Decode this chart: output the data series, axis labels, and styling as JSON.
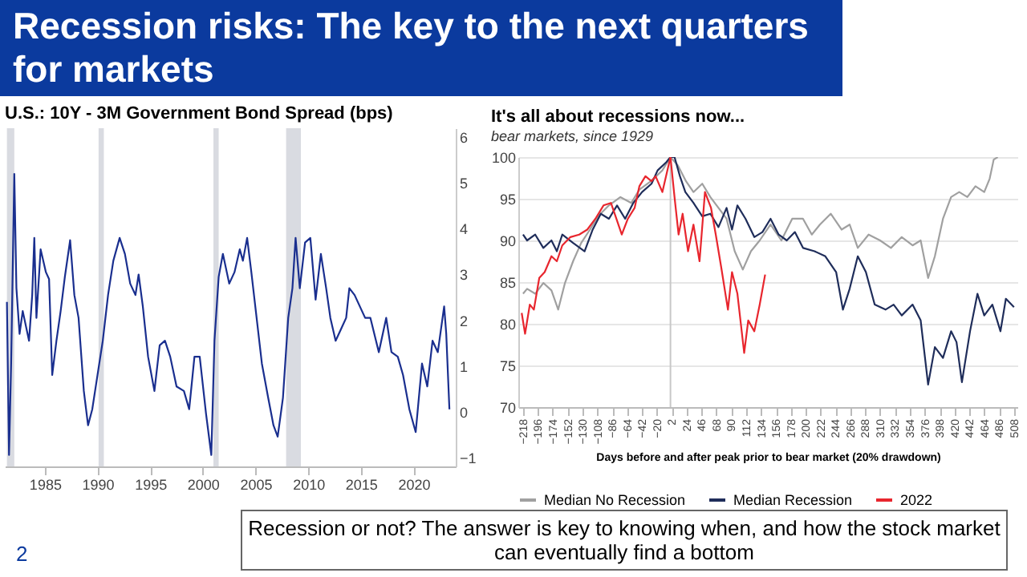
{
  "chart_data": [
    {
      "type": "line",
      "title": "U.S.: 10Y - 3M Government Bond Spread (bps)",
      "x": [
        1981.4,
        1981.6,
        1981.8,
        1982.1,
        1982.3,
        1982.6,
        1982.9,
        1983.5,
        1983.8,
        1984.0,
        1984.2,
        1984.6,
        1985.1,
        1985.4,
        1985.7,
        1986.1,
        1986.5,
        1986.9,
        1987.4,
        1987.8,
        1988.2,
        1988.7,
        1989.1,
        1989.5,
        1990.0,
        1990.5,
        1991.0,
        1991.5,
        1992.1,
        1992.6,
        1993.1,
        1993.6,
        1993.9,
        1994.3,
        1994.8,
        1995.4,
        1995.9,
        1996.4,
        1996.9,
        1997.5,
        1998.2,
        1998.7,
        1999.2,
        1999.7,
        2000.3,
        2000.8,
        2001.1,
        2001.5,
        2001.9,
        2002.5,
        2003.0,
        2003.5,
        2003.8,
        2004.2,
        2004.6,
        2005.1,
        2005.6,
        2006.2,
        2006.7,
        2007.1,
        2007.6,
        2008.1,
        2008.5,
        2008.8,
        2009.2,
        2009.7,
        2010.2,
        2010.7,
        2011.2,
        2011.7,
        2012.1,
        2012.6,
        2013.1,
        2013.6,
        2013.9,
        2014.4,
        2014.9,
        2015.4,
        2015.9,
        2016.7,
        2017.4,
        2017.9,
        2018.5,
        2019.0,
        2019.6,
        2020.2,
        2020.8,
        2021.3,
        2021.8,
        2022.3,
        2022.9,
        2023.1,
        2023.4
      ],
      "series": [
        {
          "color": "#1a2f8f",
          "values": [
            2.4,
            -0.95,
            1.05,
            5.2,
            2.7,
            1.7,
            2.2,
            1.55,
            2.55,
            3.8,
            2.05,
            3.55,
            3.05,
            2.9,
            0.8,
            1.55,
            2.2,
            2.95,
            3.75,
            2.55,
            2.05,
            0.45,
            -0.3,
            0.05,
            0.8,
            1.55,
            2.55,
            3.3,
            3.8,
            3.45,
            2.8,
            2.55,
            3.0,
            2.3,
            1.2,
            0.45,
            1.45,
            1.55,
            1.2,
            0.55,
            0.45,
            0.05,
            1.2,
            1.2,
            -0.05,
            -0.95,
            1.55,
            2.95,
            3.45,
            2.8,
            3.05,
            3.55,
            3.3,
            3.8,
            3.05,
            2.05,
            1.05,
            0.3,
            -0.3,
            -0.55,
            0.3,
            2.05,
            2.7,
            3.8,
            2.7,
            3.7,
            3.8,
            2.45,
            3.45,
            2.7,
            2.05,
            1.55,
            1.8,
            2.05,
            2.7,
            2.55,
            2.3,
            2.05,
            2.05,
            1.3,
            2.05,
            1.3,
            1.2,
            0.8,
            0.05,
            -0.45,
            1.05,
            0.55,
            1.55,
            1.3,
            2.3,
            1.7,
            0.05
          ]
        }
      ],
      "xlim": [
        1981.2,
        2024
      ],
      "xticks": [
        1985,
        1990,
        1995,
        2000,
        2005,
        2010,
        2015,
        2020
      ],
      "ylim": [
        -1.2,
        6.2
      ],
      "yticks": [
        -1,
        0,
        1,
        2,
        3,
        4,
        5,
        6
      ],
      "bands": [
        {
          "axis": "x",
          "from": 1981.4,
          "to": 1982.1,
          "color": "#d9dbe1"
        },
        {
          "axis": "x",
          "from": 1990.1,
          "to": 1990.6,
          "color": "#d9dbe1"
        },
        {
          "axis": "x",
          "from": 2001.0,
          "to": 2001.5,
          "color": "#d9dbe1"
        },
        {
          "axis": "x",
          "from": 2007.9,
          "to": 2009.3,
          "color": "#d9dbe1"
        }
      ]
    },
    {
      "type": "line",
      "title": "It's all about recessions now...",
      "subtitle": "bear markets, since 1929",
      "xlabel": "Days before and after peak prior to bear market (20% drawdown)",
      "xlim": [
        -225,
        513
      ],
      "xticks": [
        -218,
        -196,
        -174,
        -152,
        -130,
        -108,
        -86,
        -64,
        -42,
        -20,
        2,
        24,
        46,
        68,
        90,
        112,
        134,
        156,
        178,
        200,
        222,
        244,
        266,
        288,
        310,
        332,
        354,
        376,
        398,
        420,
        442,
        464,
        486,
        508
      ],
      "ylim": [
        70,
        100
      ],
      "yticks": [
        70,
        75,
        80,
        85,
        90,
        95,
        100
      ],
      "grid": "y",
      "legend": "bottom",
      "ref_lines": [
        {
          "axis": "x",
          "value": 0,
          "color": "#c8c8c8"
        }
      ],
      "series": [
        {
          "name": "Median No Recession",
          "color": "#a0a0a0",
          "x": [
            -218,
            -212,
            -200,
            -188,
            -176,
            -166,
            -156,
            -144,
            -132,
            -119,
            -107,
            -91,
            -74,
            -58,
            -46,
            -29,
            -12,
            0,
            11,
            23,
            34,
            47,
            59,
            71,
            83,
            95,
            107,
            119,
            132,
            148,
            164,
            180,
            196,
            209,
            221,
            237,
            253,
            265,
            277,
            293,
            310,
            326,
            342,
            358,
            370,
            381,
            391,
            403,
            415,
            427,
            439,
            451,
            464,
            472,
            478,
            484
          ],
          "values": [
            83.6,
            84.2,
            83.6,
            84.9,
            84.0,
            81.7,
            84.9,
            87.5,
            89.7,
            91.3,
            92.9,
            94.2,
            95.2,
            94.5,
            96.1,
            97.1,
            98.4,
            100,
            99.0,
            97.1,
            95.8,
            96.8,
            95.2,
            93.9,
            92.6,
            88.7,
            86.5,
            88.7,
            90.0,
            91.9,
            90.0,
            92.6,
            92.6,
            90.7,
            91.9,
            93.2,
            91.3,
            91.9,
            89.1,
            90.7,
            90.0,
            89.1,
            90.4,
            89.4,
            90.0,
            85.5,
            88.1,
            92.6,
            95.2,
            95.8,
            95.2,
            96.5,
            95.8,
            97.4,
            99.7,
            100
          ]
        },
        {
          "name": "Median Recession",
          "color": "#1f2d5a",
          "x": [
            -218,
            -212,
            -200,
            -188,
            -176,
            -168,
            -160,
            -144,
            -127,
            -115,
            -103,
            -91,
            -79,
            -67,
            -55,
            -42,
            -28,
            -19,
            -6,
            0,
            6,
            14,
            22,
            34,
            47,
            59,
            71,
            83,
            91,
            99,
            111,
            124,
            136,
            148,
            160,
            172,
            184,
            196,
            213,
            229,
            245,
            255,
            265,
            277,
            289,
            302,
            318,
            330,
            342,
            358,
            370,
            381,
            391,
            403,
            415,
            423,
            431,
            443,
            454,
            464,
            476,
            488,
            496,
            508
          ],
          "values": [
            90.7,
            90.0,
            90.7,
            89.1,
            90.0,
            88.7,
            90.7,
            89.7,
            88.7,
            91.3,
            93.2,
            92.6,
            94.2,
            92.6,
            94.5,
            95.8,
            96.8,
            98.4,
            99.4,
            100,
            100,
            97.7,
            95.8,
            94.5,
            92.9,
            93.2,
            91.6,
            93.9,
            91.3,
            94.2,
            92.6,
            90.4,
            91.0,
            92.6,
            90.7,
            90.0,
            91.0,
            89.1,
            88.7,
            88.1,
            86.2,
            81.7,
            84.2,
            88.1,
            86.2,
            82.3,
            81.7,
            82.3,
            81.0,
            82.3,
            80.4,
            72.7,
            77.2,
            75.9,
            79.1,
            77.8,
            73.0,
            79.1,
            83.6,
            81.0,
            82.3,
            79.1,
            83.0,
            82.0
          ]
        },
        {
          "name": "2022",
          "color": "#e8262e",
          "x": [
            -220,
            -215,
            -208,
            -202,
            -194,
            -186,
            -176,
            -168,
            -160,
            -148,
            -135,
            -123,
            -111,
            -99,
            -88,
            -80,
            -72,
            -63,
            -53,
            -46,
            -37,
            -28,
            -22,
            -12,
            0,
            6,
            12,
            18,
            26,
            34,
            43,
            51,
            60,
            67,
            75,
            85,
            91,
            99,
            109,
            115,
            124,
            132,
            140
          ],
          "values": [
            81.3,
            78.8,
            82.3,
            81.7,
            85.5,
            86.2,
            88.1,
            87.5,
            89.4,
            90.4,
            90.7,
            91.3,
            92.6,
            94.2,
            94.5,
            92.6,
            90.7,
            92.6,
            93.9,
            96.5,
            97.7,
            97.1,
            97.7,
            95.8,
            100,
            95.2,
            90.7,
            93.2,
            88.7,
            91.9,
            87.5,
            95.8,
            93.9,
            90.7,
            86.8,
            81.7,
            86.2,
            83.6,
            76.5,
            80.4,
            79.1,
            82.3,
            85.9
          ]
        }
      ]
    },
    {
      "type": "other",
      "title": "Recession risks: The key to the next quarters for markets",
      "annotations": [
        "Recession or not? The answer is key to knowing when, and how the stock market can eventually find a bottom",
        "2"
      ]
    }
  ]
}
